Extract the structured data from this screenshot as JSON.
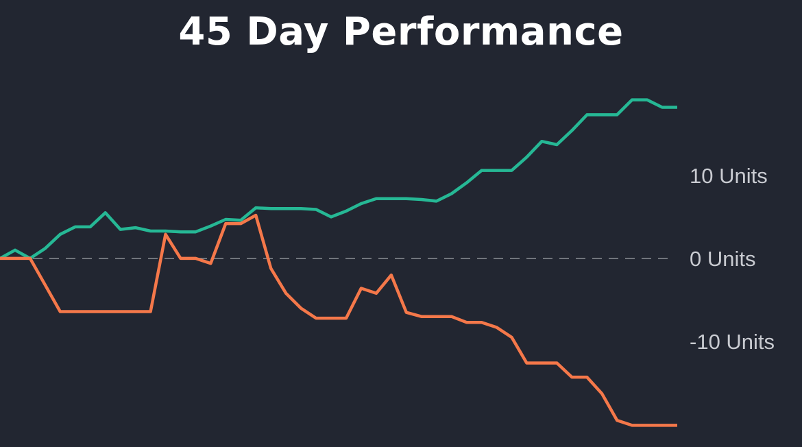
{
  "chart_data": {
    "type": "line",
    "title": "45 Day Performance",
    "xlabel": "",
    "ylabel": "",
    "ylim": [
      -20.4,
      19.4
    ],
    "grid": false,
    "legend": "none",
    "x": [
      0,
      1,
      2,
      3,
      4,
      5,
      6,
      7,
      8,
      9,
      10,
      11,
      12,
      13,
      14,
      15,
      16,
      17,
      18,
      19,
      20,
      21,
      22,
      23,
      24,
      25,
      26,
      27,
      28,
      29,
      30,
      31,
      32,
      33,
      34,
      35,
      36,
      37,
      38,
      39,
      40,
      41,
      42,
      43,
      44,
      45
    ],
    "yticks": [
      {
        "value": 10,
        "label": "10 Units"
      },
      {
        "value": 0,
        "label": "0 Units"
      },
      {
        "value": -10,
        "label": "-10 Units"
      }
    ],
    "series": [
      {
        "color": "#26b895",
        "values": [
          0,
          1,
          0,
          1.2,
          2.9,
          3.8,
          3.8,
          5.5,
          3.5,
          3.7,
          3.3,
          3.3,
          3.2,
          3.2,
          3.9,
          4.7,
          4.6,
          6.1,
          6.0,
          6.0,
          6.0,
          5.9,
          5.0,
          5.7,
          6.6,
          7.2,
          7.2,
          7.2,
          7.1,
          6.9,
          7.8,
          9.1,
          10.6,
          10.6,
          10.6,
          12.2,
          14.1,
          13.7,
          15.4,
          17.3,
          17.3,
          17.3,
          19.1,
          19.1,
          18.2,
          18.2
        ]
      },
      {
        "color": "#f5784a",
        "values": [
          0,
          0,
          0,
          -3.2,
          -6.4,
          -6.4,
          -6.4,
          -6.4,
          -6.4,
          -6.4,
          -6.4,
          2.9,
          0,
          0,
          -0.6,
          4.2,
          4.2,
          5.2,
          -1.2,
          -4.2,
          -6.0,
          -7.2,
          -7.2,
          -7.2,
          -3.6,
          -4.2,
          -2.0,
          -6.5,
          -7.0,
          -7.0,
          -7.0,
          -7.7,
          -7.7,
          -8.3,
          -9.5,
          -12.6,
          -12.6,
          -12.6,
          -14.3,
          -14.3,
          -16.3,
          -19.5,
          -20.1,
          -20.1,
          -20.1,
          -20.1
        ]
      }
    ],
    "reference_line": {
      "value": 0,
      "style": "dashed",
      "color": "#8a8d96"
    }
  }
}
